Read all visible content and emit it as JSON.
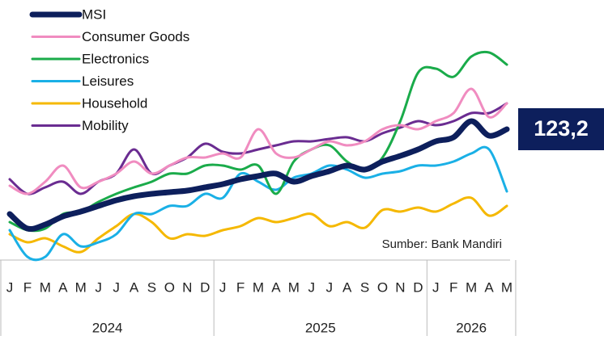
{
  "chart_data": {
    "type": "line",
    "categories": [
      "J",
      "F",
      "M",
      "A",
      "M",
      "J",
      "J",
      "A",
      "S",
      "O",
      "N",
      "D",
      "J",
      "F",
      "M",
      "A",
      "M",
      "J",
      "J",
      "A",
      "S",
      "O",
      "N",
      "D",
      "J",
      "F",
      "M",
      "A",
      "M"
    ],
    "groups": [
      {
        "label": "2024",
        "count": 12
      },
      {
        "label": "2025",
        "count": 12
      },
      {
        "label": "2026",
        "count": 5
      }
    ],
    "ylim": [
      57.2,
      165.2
    ],
    "annotation": "Sumber: Bank Mandiri",
    "series": [
      {
        "name": "MSI",
        "color": "#0d1f5c",
        "values": [
          81.2,
          74.0,
          76.0,
          80.0,
          82.4,
          85.2,
          88.0,
          90.0,
          91.2,
          92.0,
          92.8,
          94.4,
          96.0,
          98.4,
          100.0,
          101.2,
          97.2,
          100.0,
          102.4,
          105.2,
          103.2,
          107.2,
          110.0,
          113.2,
          117.2,
          119.2,
          127.2,
          120.0,
          123.2
        ],
        "value_labels": [
          null,
          null,
          null,
          null,
          null,
          null,
          null,
          null,
          null,
          null,
          null,
          null,
          null,
          null,
          null,
          null,
          null,
          null,
          null,
          null,
          null,
          null,
          null,
          null,
          null,
          null,
          null,
          null,
          "123,2"
        ]
      },
      {
        "name": "Consumer Goods",
        "color": "#f08cc0",
        "values": [
          95.2,
          91.2,
          97.2,
          105.2,
          94.4,
          97.2,
          101.2,
          107.2,
          101.2,
          105.2,
          109.2,
          109.2,
          111.2,
          109.2,
          123.2,
          111.2,
          109.2,
          113.2,
          117.2,
          115.2,
          117.2,
          123.2,
          125.2,
          123.2,
          127.2,
          131.2,
          143.2,
          129.2,
          136.0
        ]
      },
      {
        "name": "Electronics",
        "color": "#1aab4a",
        "values": [
          77.2,
          73.2,
          74.0,
          81.2,
          82.4,
          87.2,
          91.2,
          94.4,
          97.2,
          101.2,
          101.2,
          105.2,
          105.2,
          103.2,
          105.2,
          91.2,
          107.2,
          113.2,
          115.2,
          107.2,
          103.2,
          109.2,
          127.2,
          151.2,
          153.2,
          149.2,
          159.2,
          161.2,
          155.2
        ]
      },
      {
        "name": "Leisures",
        "color": "#1ab0e6",
        "values": [
          73.2,
          60.0,
          60.0,
          71.2,
          65.2,
          67.2,
          71.2,
          81.2,
          81.2,
          85.2,
          85.2,
          91.2,
          89.2,
          101.2,
          97.2,
          93.2,
          99.2,
          101.2,
          105.2,
          103.2,
          99.2,
          101.2,
          102.4,
          105.2,
          105.2,
          107.2,
          111.2,
          113.2,
          92.4
        ]
      },
      {
        "name": "Household",
        "color": "#f5b800",
        "values": [
          71.2,
          67.2,
          69.2,
          65.2,
          62.4,
          69.2,
          75.2,
          81.2,
          77.2,
          69.2,
          71.2,
          70.4,
          73.2,
          75.2,
          79.2,
          77.2,
          79.2,
          81.2,
          75.2,
          77.2,
          74.4,
          83.2,
          82.4,
          84.4,
          82.4,
          86.4,
          89.2,
          80.4,
          85.2
        ]
      },
      {
        "name": "Mobility",
        "color": "#6a2c91",
        "values": [
          98.4,
          91.2,
          94.4,
          97.2,
          91.2,
          97.2,
          101.2,
          113.2,
          101.2,
          105.2,
          109.2,
          116.0,
          112.0,
          111.2,
          113.2,
          115.2,
          117.2,
          117.2,
          118.4,
          119.2,
          117.2,
          121.2,
          124.0,
          127.2,
          125.2,
          127.2,
          131.2,
          131.2,
          136.0
        ]
      }
    ]
  }
}
